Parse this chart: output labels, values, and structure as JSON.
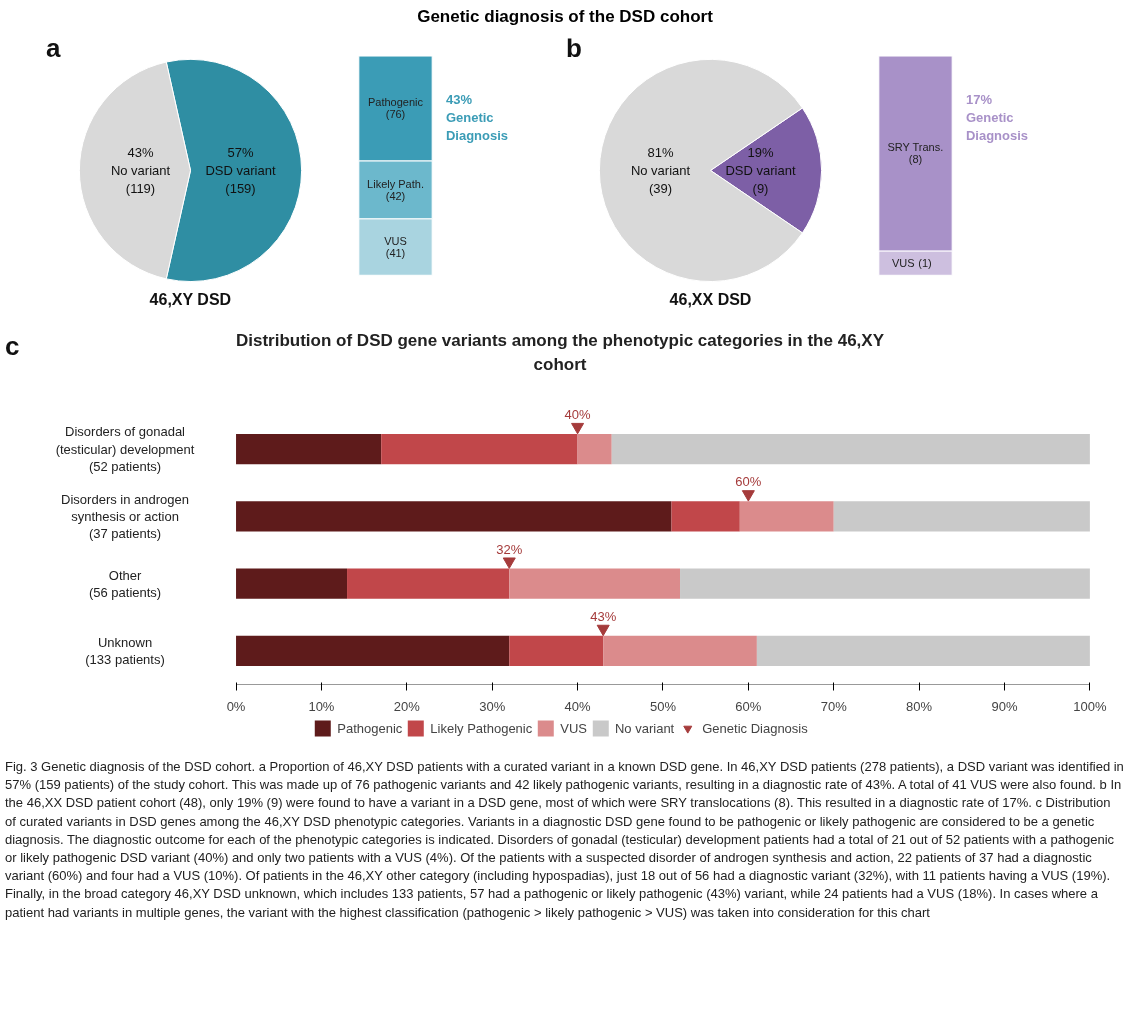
{
  "chart_data": [
    {
      "type": "pie",
      "title": "Genetic diagnosis of the DSD cohort",
      "xlabel": "46,XY DSD",
      "annotations": [
        "a"
      ],
      "categories": [
        "No variant\n(119)",
        "DSD variant\n(159)"
      ],
      "values": [
        43,
        57
      ],
      "value_labels": [
        "43%",
        "57%"
      ],
      "colors": [
        "#d9d9d9",
        "#2f8ea3"
      ]
    },
    {
      "type": "bar",
      "stacked": true,
      "categories": [
        null
      ],
      "data_labels": true,
      "annotations": [
        "43% Genetic Diagnosis"
      ],
      "series": [
        {
          "name": "VUS",
          "color": "#a9d4e0",
          "values": [
            41
          ],
          "value_labels": [
            "(41)"
          ]
        },
        {
          "name": "Likely Path.",
          "color": "#6cb8cc",
          "values": [
            42
          ],
          "value_labels": [
            "(42)"
          ]
        },
        {
          "name": "Pathogenic",
          "color": "#3b9cb6",
          "values": [
            76
          ],
          "value_labels": [
            "(76)"
          ]
        }
      ]
    },
    {
      "type": "pie",
      "xlabel": "46,XX DSD",
      "annotations": [
        "b"
      ],
      "categories": [
        "No variant\n(39)",
        "DSD variant\n(9)"
      ],
      "values": [
        81,
        19
      ],
      "value_labels": [
        "81%",
        "19%"
      ],
      "colors": [
        "#d9d9d9",
        "#7d5fa6"
      ]
    },
    {
      "type": "bar",
      "stacked": true,
      "categories": [
        null
      ],
      "data_labels": true,
      "annotations": [
        "17% Genetic Diagnosis"
      ],
      "series": [
        {
          "name": "VUS",
          "color": "#cdbfdf",
          "values": [
            1
          ],
          "value_labels": [
            "(1)"
          ]
        },
        {
          "name": "SRY Trans.",
          "color": "#a891c8",
          "values": [
            8
          ],
          "value_labels": [
            "(8)"
          ]
        }
      ]
    },
    {
      "type": "bar",
      "orientation": "horizontal",
      "stacked": true,
      "title": "Distribution of DSD gene variants among the phenotypic categories in the 46,XY cohort",
      "annotations": [
        "c",
        "Fig. 3 Genetic diagnosis of the DSD cohort. a Proportion of 46,XY DSD patients with a curated variant in a known DSD gene. In 46,XY DSD patients (278 patients), a DSD variant was identified in 57% (159 patients) of the study cohort. This was made up of 76 pathogenic variants and 42 likely pathogenic variants, resulting in a diagnostic rate of 43%. A total of 41 VUS were also found. b In the 46,XX DSD patient cohort (48), only 19% (9) were found to have a variant in a DSD gene, most of which were SRY translocations (8). This resulted in a diagnostic rate of 17%. c Distribution of curated variants in DSD genes among the 46,XY DSD phenotypic categories. Variants in a diagnostic DSD gene found to be pathogenic or likely pathogenic are considered to be a genetic diagnosis. The diagnostic outcome for each of the phenotypic categories is indicated. Disorders of gonadal (testicular) development patients had a total of 21 out of 52 patients with a pathogenic or likely pathogenic DSD variant (40%) and only two patients with a VUS (4%). Of the patients with a suspected disorder of androgen synthesis and action, 22 patients of 37 had a diagnostic variant (60%) and four had a VUS (10%). Of patients in the 46,XY other category (including hypospadias), just 18 out of 56 had a diagnostic variant (32%), with 11 patients having a VUS (19%). Finally, in the broad category 46,XY DSD unknown, which includes 133 patients, 57 had a pathogenic or likely pathogenic (43%) variant, while 24 patients had a VUS (18%). In cases where a patient had variants in multiple genes, the variant with the highest classification (pathogenic > likely pathogenic > VUS) was taken into consideration for this chart"
      ],
      "categories": [
        "Disorders of gonadal\n(testicular) development\n(52 patients)",
        "Disorders in androgen\nsynthesis or action\n(37 patients)",
        "Other\n(56 patients)",
        "Unknown\n(133 patients)"
      ],
      "xlim": [
        0,
        100
      ],
      "xticks": [
        {
          "value": 0,
          "label": "0%"
        },
        {
          "value": 10,
          "label": "10%"
        },
        {
          "value": 20,
          "label": "20%"
        },
        {
          "value": 30,
          "label": "30%"
        },
        {
          "value": 40,
          "label": "40%"
        },
        {
          "value": 50,
          "label": "50%"
        },
        {
          "value": 60,
          "label": "60%"
        },
        {
          "value": 70,
          "label": "70%"
        },
        {
          "value": 80,
          "label": "80%"
        },
        {
          "value": 90,
          "label": "90%"
        },
        {
          "value": 100,
          "label": "100%"
        }
      ],
      "legend": "bottom",
      "series": [
        {
          "name": "Pathogenic",
          "color": "#5e1b1b",
          "values": [
            17,
            51,
            13,
            32
          ]
        },
        {
          "name": "Likely Pathogenic",
          "color": "#c1474a",
          "values": [
            23,
            8,
            19,
            11
          ]
        },
        {
          "name": "VUS",
          "color": "#db8b8c",
          "values": [
            4,
            11,
            20,
            18
          ]
        },
        {
          "name": "No variant",
          "color": "#c9c9c9",
          "values": [
            56,
            30,
            48,
            39
          ]
        },
        {
          "name": "Genetic Diagnosis",
          "type": "scatter",
          "marker": "triangle",
          "color": "#a53b3b",
          "values": [
            40,
            60,
            32,
            43
          ],
          "value_labels": [
            "40%",
            "60%",
            "32%",
            "43%"
          ]
        }
      ]
    }
  ]
}
